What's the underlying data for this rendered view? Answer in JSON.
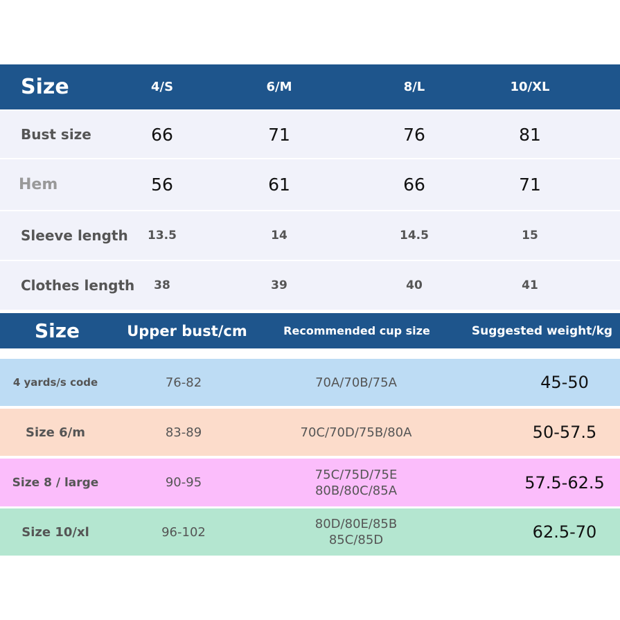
{
  "size_table": {
    "header": {
      "label": "Size",
      "columns": [
        "4/S",
        "6/M",
        "8/L",
        "10/XL"
      ]
    },
    "rows": [
      {
        "label": "Bust size",
        "values": [
          66,
          71,
          76,
          81
        ]
      },
      {
        "label": "Hem",
        "values": [
          56,
          61,
          66,
          71
        ]
      },
      {
        "label": "Sleeve length",
        "values": [
          13.5,
          14,
          14.5,
          15
        ]
      },
      {
        "label": "Clothes length",
        "values": [
          38,
          39,
          40,
          41
        ]
      }
    ]
  },
  "cup_table": {
    "header": [
      "Size",
      "Upper bust/cm",
      "Recommended cup size",
      "Suggested weight/kg"
    ],
    "rows": [
      {
        "size": "4 yards/s code",
        "upper_bust": "76-82",
        "cup_sizes": [
          "70A/70B/75A"
        ],
        "weight": "45-50"
      },
      {
        "size": "Size 6/m",
        "upper_bust": "83-89",
        "cup_sizes": [
          "70C/70D/75B/80A"
        ],
        "weight": "50-57.5"
      },
      {
        "size": "Size 8 / large",
        "upper_bust": "90-95",
        "cup_sizes": [
          "75C/75D/75E",
          "80B/80C/85A"
        ],
        "weight": "57.5-62.5"
      },
      {
        "size": "Size 10/xl",
        "upper_bust": "96-102",
        "cup_sizes": [
          "80D/80E/85B",
          "85C/85D"
        ],
        "weight": "62.5-70"
      }
    ]
  }
}
